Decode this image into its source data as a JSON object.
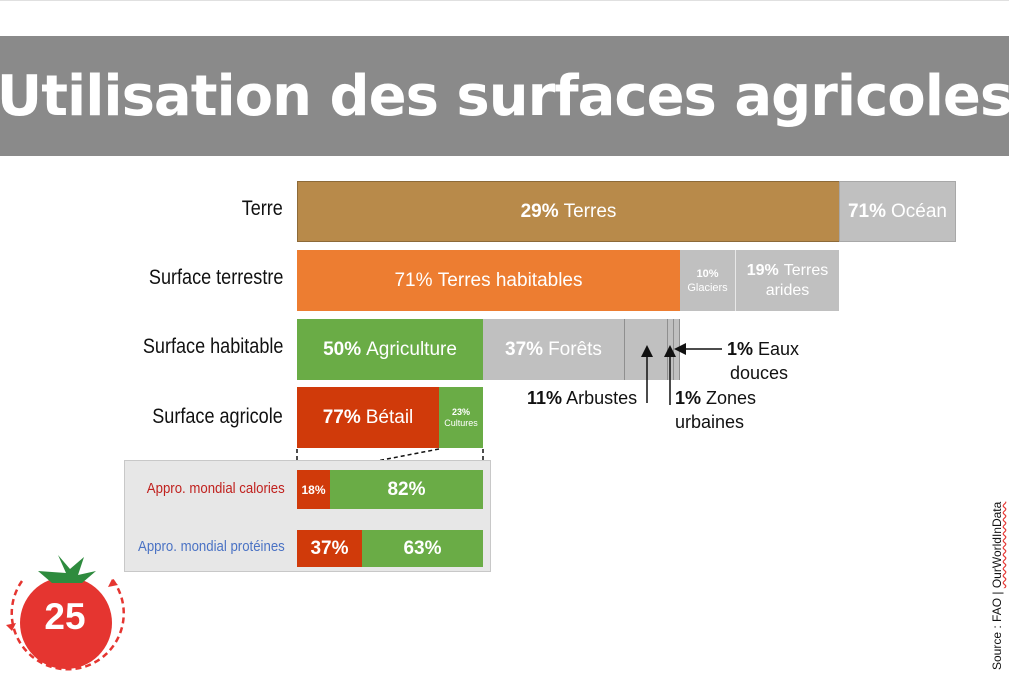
{
  "title": "Utilisation des surfaces agricoles",
  "chart_data": {
    "type": "stacked-bar",
    "rows": [
      {
        "label": "Terre",
        "segments": [
          {
            "pct": 29,
            "pct_text": "29%",
            "name": "Terres",
            "color": "#b88a4a"
          },
          {
            "pct": 71,
            "pct_text": "71%",
            "name": "Océan",
            "color": "#c0c0c0"
          }
        ]
      },
      {
        "label": "Surface terrestre",
        "segments": [
          {
            "pct": 71,
            "pct_text": "71%",
            "name": "Terres habitables",
            "color": "#ed7d31"
          },
          {
            "pct": 10,
            "pct_text": "10%",
            "name": "Glaciers",
            "color": "#c0c0c0"
          },
          {
            "pct": 19,
            "pct_text": "19%",
            "name": "Terres arides",
            "color": "#c0c0c0"
          }
        ]
      },
      {
        "label": "Surface habitable",
        "segments": [
          {
            "pct": 50,
            "pct_text": "50%",
            "name": "Agriculture",
            "color": "#6aac46"
          },
          {
            "pct": 37,
            "pct_text": "37%",
            "name": "Forêts",
            "color": "#c0c0c0"
          },
          {
            "pct": 11,
            "pct_text": "11%",
            "name": "Arbustes",
            "color": "#c0c0c0"
          },
          {
            "pct": 1,
            "pct_text": "1%",
            "name": "Zones urbaines",
            "color": "#c0c0c0"
          },
          {
            "pct": 1,
            "pct_text": "1%",
            "name": "Eaux douces",
            "color": "#c0c0c0"
          }
        ]
      },
      {
        "label": "Surface agricole",
        "segments": [
          {
            "pct": 77,
            "pct_text": "77%",
            "name": "Bétail",
            "color": "#d03a0a"
          },
          {
            "pct": 23,
            "pct_text": "23%",
            "name": "Cultures",
            "color": "#6aac46"
          }
        ]
      }
    ],
    "supply_rows": [
      {
        "label": "Appro. mondial calories",
        "label_color": "#c0211e",
        "segments": [
          {
            "pct": 18,
            "pct_text": "18%",
            "color": "#d03a0a"
          },
          {
            "pct": 82,
            "pct_text": "82%",
            "color": "#6aac46"
          }
        ]
      },
      {
        "label": "Appro. mondial protéines",
        "label_color": "#4a72c4",
        "segments": [
          {
            "pct": 37,
            "pct_text": "37%",
            "color": "#d03a0a"
          },
          {
            "pct": 63,
            "pct_text": "63%",
            "color": "#6aac46"
          }
        ]
      }
    ],
    "annotations": {
      "arbustes": {
        "pct": "11%",
        "text": "Arbustes"
      },
      "zones_urbaines": {
        "pct": "1%",
        "line1": "Zones",
        "line2": "urbaines"
      },
      "eaux_douces": {
        "pct": "1%",
        "line1": "Eaux",
        "line2": "douces"
      }
    }
  },
  "source": {
    "prefix": "Source : FAO | ",
    "link": "OurWorldInData"
  },
  "badge": {
    "number": "25",
    "color": "#e53530"
  }
}
